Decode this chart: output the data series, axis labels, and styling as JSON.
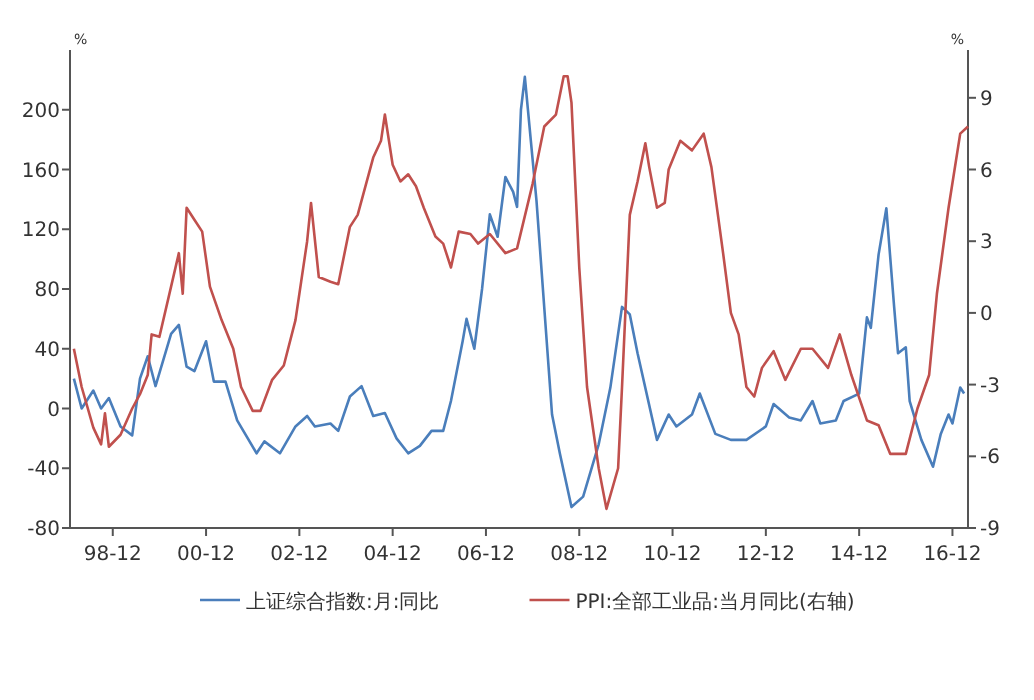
{
  "chart_data": {
    "type": "line",
    "ylabel": "%",
    "y2label": "%",
    "legend": "bottom",
    "grid": false,
    "xlim": [
      "1998-01",
      "2017-04"
    ],
    "xticks": [
      {
        "value": "1998-12",
        "label": "98-12"
      },
      {
        "value": "2000-12",
        "label": "00-12"
      },
      {
        "value": "2002-12",
        "label": "02-12"
      },
      {
        "value": "2004-12",
        "label": "04-12"
      },
      {
        "value": "2006-12",
        "label": "06-12"
      },
      {
        "value": "2008-12",
        "label": "08-12"
      },
      {
        "value": "2010-12",
        "label": "10-12"
      },
      {
        "value": "2012-12",
        "label": "12-12"
      },
      {
        "value": "2014-12",
        "label": "14-12"
      },
      {
        "value": "2016-12",
        "label": "16-12"
      }
    ],
    "ylim": [
      -80,
      240
    ],
    "yticks": [
      -80,
      -40,
      0,
      40,
      80,
      120,
      160,
      200
    ],
    "y2lim": [
      -9,
      11
    ],
    "y2ticks": [
      -9,
      -6,
      -3,
      0,
      3,
      6,
      9
    ],
    "series": [
      {
        "name": "上证综合指数:月:同比",
        "color": "#4a7ebb",
        "x": [
          "1998-02",
          "1998-04",
          "1998-07",
          "1998-09",
          "1998-11",
          "1999-02",
          "1999-05",
          "1999-07",
          "1999-09",
          "1999-11",
          "2000-03",
          "2000-05",
          "2000-07",
          "2000-09",
          "2000-12",
          "2001-02",
          "2001-05",
          "2001-08",
          "2002-01",
          "2002-03",
          "2002-07",
          "2002-11",
          "2003-02",
          "2003-04",
          "2003-08",
          "2003-10",
          "2004-01",
          "2004-04",
          "2004-07",
          "2004-10",
          "2005-01",
          "2005-04",
          "2005-07",
          "2005-10",
          "2006-01",
          "2006-03",
          "2006-06",
          "2006-07",
          "2006-09",
          "2006-11",
          "2007-01",
          "2007-03",
          "2007-05",
          "2007-07",
          "2007-08",
          "2007-09",
          "2007-10",
          "2008-01",
          "2008-05",
          "2008-07",
          "2008-10",
          "2009-01",
          "2009-05",
          "2009-08",
          "2009-11",
          "2010-01",
          "2010-03",
          "2010-08",
          "2010-11",
          "2011-01",
          "2011-05",
          "2011-07",
          "2011-11",
          "2012-03",
          "2012-07",
          "2012-12",
          "2013-02",
          "2013-06",
          "2013-09",
          "2013-12",
          "2014-02",
          "2014-06",
          "2014-08",
          "2014-12",
          "2015-02",
          "2015-03",
          "2015-05",
          "2015-07",
          "2015-09",
          "2015-10",
          "2015-12",
          "2016-01",
          "2016-04",
          "2016-07",
          "2016-09",
          "2016-11",
          "2016-12",
          "2017-02",
          "2017-03"
        ],
        "values": [
          20,
          0,
          12,
          0,
          7,
          -12,
          -18,
          20,
          35,
          15,
          50,
          56,
          28,
          25,
          45,
          18,
          18,
          -8,
          -30,
          -22,
          -30,
          -12,
          -5,
          -12,
          -10,
          -15,
          8,
          15,
          -5,
          -3,
          -20,
          -30,
          -25,
          -15,
          -15,
          5,
          45,
          60,
          40,
          80,
          130,
          115,
          155,
          145,
          135,
          200,
          222,
          139,
          -4,
          -30,
          -66,
          -59,
          -24,
          14,
          68,
          63,
          37,
          -21,
          -4,
          -12,
          -4,
          10,
          -17,
          -21,
          -21,
          -12,
          3,
          -6,
          -8,
          5,
          -10,
          -8,
          5,
          10,
          61,
          54,
          103,
          134,
          68,
          37,
          41,
          5,
          -21,
          -39,
          -17,
          -4,
          -10,
          14,
          10
        ]
      },
      {
        "name": "PPI:全部工业品:当月同比(右轴)",
        "color": "#c0504d",
        "axis": "y2",
        "x": [
          "1998-02",
          "1998-04",
          "1998-07",
          "1998-09",
          "1998-10",
          "1998-11",
          "1999-02",
          "1999-05",
          "1999-07",
          "1999-09",
          "1999-10",
          "1999-12",
          "2000-03",
          "2000-05",
          "2000-06",
          "2000-07",
          "2000-09",
          "2000-11",
          "2001-01",
          "2001-04",
          "2001-07",
          "2001-09",
          "2001-12",
          "2002-02",
          "2002-05",
          "2002-08",
          "2002-11",
          "2003-02",
          "2003-03",
          "2003-05",
          "2003-08",
          "2003-10",
          "2004-01",
          "2004-03",
          "2004-07",
          "2004-09",
          "2004-10",
          "2004-12",
          "2005-02",
          "2005-04",
          "2005-06",
          "2005-08",
          "2005-11",
          "2006-01",
          "2006-03",
          "2006-05",
          "2006-08",
          "2006-10",
          "2007-01",
          "2007-05",
          "2007-08",
          "2007-12",
          "2008-03",
          "2008-06",
          "2008-08",
          "2008-09",
          "2008-10",
          "2008-12",
          "2009-02",
          "2009-05",
          "2009-07",
          "2009-10",
          "2009-11",
          "2010-01",
          "2010-03",
          "2010-05",
          "2010-06",
          "2010-08",
          "2010-10",
          "2010-11",
          "2011-02",
          "2011-05",
          "2011-08",
          "2011-10",
          "2012-01",
          "2012-03",
          "2012-05",
          "2012-07",
          "2012-09",
          "2012-11",
          "2013-02",
          "2013-05",
          "2013-09",
          "2013-12",
          "2014-04",
          "2014-07",
          "2014-10",
          "2015-02",
          "2015-05",
          "2015-08",
          "2015-12",
          "2016-03",
          "2016-06",
          "2016-08",
          "2016-11",
          "2017-02",
          "2017-04"
        ],
        "values": [
          -1.5,
          -3.1,
          -4.8,
          -5.5,
          -4.2,
          -5.6,
          -5.1,
          -4.0,
          -3.4,
          -2.6,
          -0.9,
          -1.0,
          1.1,
          2.5,
          0.8,
          4.4,
          3.9,
          3.4,
          1.1,
          -0.3,
          -1.5,
          -3.1,
          -4.1,
          -4.1,
          -2.8,
          -2.2,
          -0.3,
          3.0,
          4.6,
          1.5,
          1.3,
          1.2,
          3.6,
          4.1,
          6.5,
          7.2,
          8.3,
          6.2,
          5.5,
          5.8,
          5.3,
          4.4,
          3.2,
          2.9,
          1.9,
          3.4,
          3.3,
          2.9,
          3.3,
          2.5,
          2.7,
          5.4,
          7.8,
          8.3,
          9.9,
          9.9,
          8.8,
          1.9,
          -3.1,
          -6.5,
          -8.2,
          -6.5,
          -3.1,
          4.1,
          5.5,
          7.1,
          6.1,
          4.4,
          4.6,
          6.0,
          7.2,
          6.8,
          7.5,
          6.1,
          2.5,
          0,
          -0.9,
          -3.1,
          -3.5,
          -2.3,
          -1.6,
          -2.8,
          -1.5,
          -1.5,
          -2.3,
          -0.9,
          -2.6,
          -4.5,
          -4.7,
          -5.9,
          -5.9,
          -4.0,
          -2.6,
          0.8,
          4.4,
          7.5,
          7.8
        ]
      }
    ]
  }
}
